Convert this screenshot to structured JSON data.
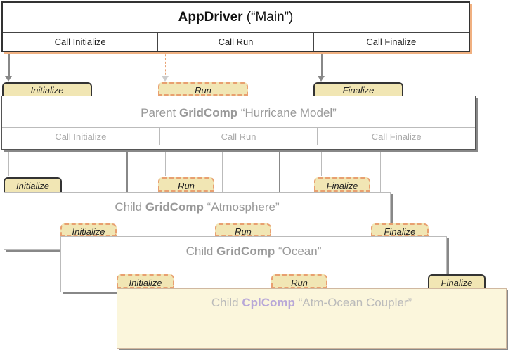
{
  "app_driver": {
    "title_bold": "AppDriver",
    "title_rest": " (“Main”)",
    "calls": [
      "Call Initialize",
      "Call Run",
      "Call Finalize"
    ]
  },
  "parent": {
    "tabs": [
      "Initialize",
      "Run",
      "Finalize"
    ],
    "title_pre": "Parent ",
    "title_bold": "GridComp",
    "title_rest": " “Hurricane Model”",
    "calls": [
      "Call Initialize",
      "Call Run",
      "Call Finalize"
    ]
  },
  "atmosphere": {
    "tabs": [
      "Initialize",
      "Run",
      "Finalize"
    ],
    "title_pre": "Child ",
    "title_bold": "GridComp",
    "title_rest": " “Atmosphere”"
  },
  "ocean": {
    "tabs": [
      "Initialize",
      "Run",
      "Finalize"
    ],
    "title_pre": "Child ",
    "title_bold": "GridComp",
    "title_rest": " “Ocean”"
  },
  "coupler": {
    "tabs": [
      "Initialize",
      "Run",
      "Finalize"
    ],
    "title_pre": "Child ",
    "title_bold": "CplComp",
    "title_rest": " “Atm-Ocean Coupler”"
  },
  "colors": {
    "tab_fill": "#f1e6b4",
    "accent_orange": "#e8a070",
    "coupler_tint": "#fbf6dc"
  }
}
